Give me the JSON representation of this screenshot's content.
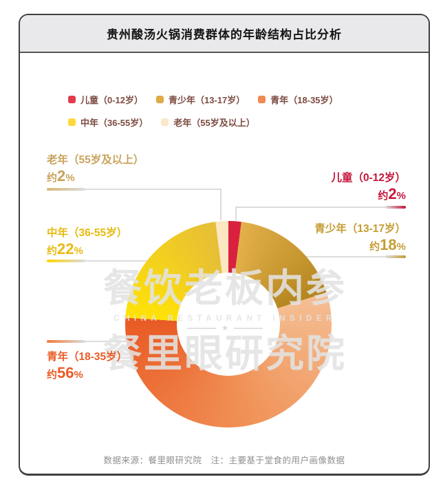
{
  "header": {
    "title": "贵州酸汤火锅消费群体的年龄结构占比分析"
  },
  "legend": {
    "items": [
      {
        "label": "儿童（0-12岁）",
        "color": "#E23B4B"
      },
      {
        "label": "青少年（13-17岁）",
        "color": "#DFAC45"
      },
      {
        "label": "青年（18-35岁）",
        "color": "#F08A50"
      },
      {
        "label": "中年（36-55岁）",
        "color": "#FFD83B"
      },
      {
        "label": "老年（55岁及以上）",
        "color": "#FAE8C8"
      }
    ]
  },
  "callouts": [
    {
      "id": "laonian",
      "label": "老年（55岁及以上）",
      "value_prefix": "约",
      "value": "2",
      "value_suffix": "%",
      "color": "#C9A35B",
      "tip_color": "#D9B977",
      "side": "left"
    },
    {
      "id": "ertong",
      "label": "儿童（0-12岁）",
      "value_prefix": "约",
      "value": "2",
      "value_suffix": "%",
      "color": "#C5163B",
      "tip_color": "#C5163B",
      "side": "right"
    },
    {
      "id": "qingshaonian",
      "label": "青少年（13-17岁）",
      "value_prefix": "约",
      "value": "18",
      "value_suffix": "%",
      "color": "#C59D33",
      "tip_color": "#C59D33",
      "side": "right"
    },
    {
      "id": "zhongnian",
      "label": "中年（36-55岁）",
      "value_prefix": "约",
      "value": "22",
      "value_suffix": "%",
      "color": "#E9BA10",
      "tip_color": "#FFD400",
      "side": "left"
    },
    {
      "id": "qingnian",
      "label": "青年（18-35岁）",
      "value_prefix": "约",
      "value": "56",
      "value_suffix": "%",
      "color": "#EA5B25",
      "tip_color": "#F07A3A",
      "side": "left"
    }
  ],
  "watermark": {
    "line1": "餐饮老板内参",
    "line2": "CHINA RESTAURANT INSIDER",
    "star": "★",
    "line3": "餐里眼研究院"
  },
  "footer": {
    "text": "数据来源：餐里眼研究院　注：主要基于堂食的用户画像数据"
  },
  "chart_data": {
    "type": "pie",
    "subtype": "donut",
    "title": "贵州酸汤火锅消费群体的年龄结构占比分析",
    "categories": [
      "儿童（0-12岁）",
      "青少年（13-17岁）",
      "青年（18-35岁）",
      "中年（36-55岁）",
      "老年（55岁及以上）"
    ],
    "values": [
      2,
      18,
      56,
      22,
      2
    ],
    "unit": "%",
    "value_qualifier": "约",
    "start_angle_deg": 0,
    "direction": "clockwise",
    "inner_radius_ratio": 0.5,
    "slice_colors": [
      [
        "#D9213F"
      ],
      [
        "#E3B04A",
        "#B4861F"
      ],
      [
        "#F4BE92",
        "#F09055",
        "#E95A24"
      ],
      [
        "#FFE305",
        "#E6BE37"
      ],
      [
        "#FBE7C2"
      ]
    ],
    "legend_position": "top",
    "source_note": "数据来源：餐里眼研究院 注：主要基于堂食的用户画像数据"
  }
}
